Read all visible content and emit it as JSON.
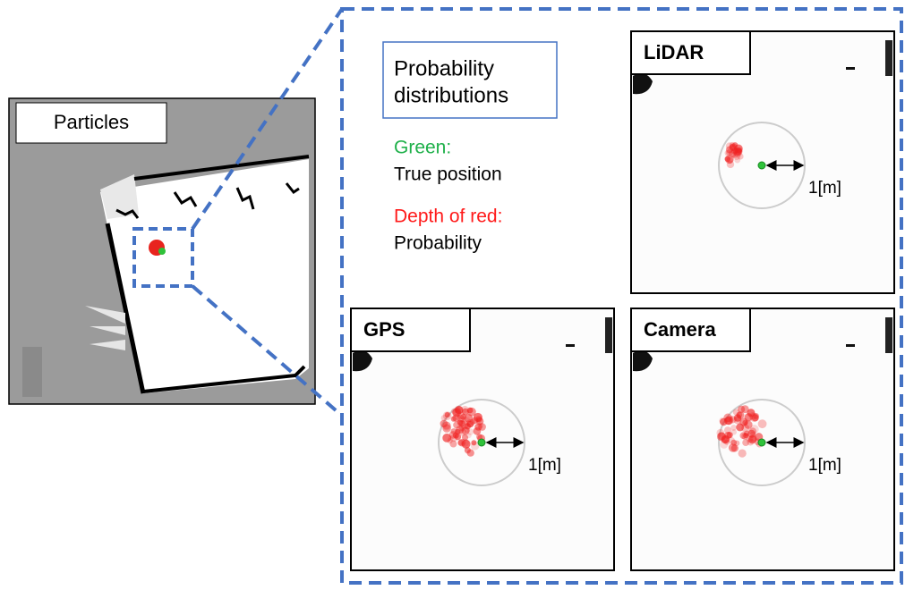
{
  "particles_label": "Particles",
  "legend": {
    "title_lines": [
      "Probability",
      "distributions"
    ],
    "green_label": "Green:",
    "green_text": "True position",
    "red_label": "Depth of red:",
    "red_text": "Probability"
  },
  "panels": [
    {
      "label": "LiDAR",
      "scale_label": "1[m]"
    },
    {
      "label": "GPS",
      "scale_label": "1[m]"
    },
    {
      "label": "Camera",
      "scale_label": "1[m]"
    }
  ]
}
